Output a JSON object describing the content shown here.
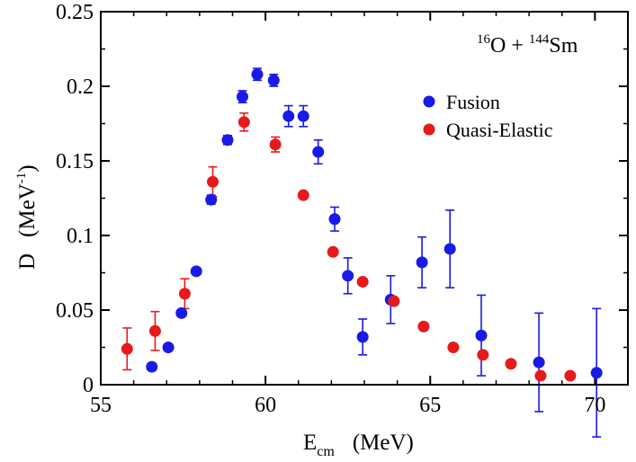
{
  "chart_data": {
    "type": "scatter",
    "title": "",
    "reaction": {
      "base": "O + ",
      "mass1": "16",
      "mass2": "144",
      "element2": "Sm"
    },
    "xlabel": {
      "main": "E",
      "sub": "cm",
      "unit": "(MeV)"
    },
    "ylabel": {
      "main": "D",
      "unit_open": "(MeV",
      "sup": "-1",
      "unit_close": ")"
    },
    "xlim": [
      55,
      71
    ],
    "ylim": [
      0,
      0.25
    ],
    "xticks": [
      {
        "v": 55,
        "label": "55"
      },
      {
        "v": 60,
        "label": "60"
      },
      {
        "v": 65,
        "label": "65"
      },
      {
        "v": 70,
        "label": "70"
      }
    ],
    "yticks": [
      {
        "v": 0,
        "label": "0"
      },
      {
        "v": 0.05,
        "label": "0.05"
      },
      {
        "v": 0.1,
        "label": "0.1"
      },
      {
        "v": 0.15,
        "label": "0.15"
      },
      {
        "v": 0.2,
        "label": "0.2"
      },
      {
        "v": 0.25,
        "label": "0.25"
      }
    ],
    "legend": {
      "position": "top-right"
    },
    "series": [
      {
        "name": "Fusion",
        "color": "#1a1ae6",
        "points": [
          {
            "x": 56.55,
            "y": 0.012,
            "err": 0.002
          },
          {
            "x": 57.05,
            "y": 0.025,
            "err": 0.002
          },
          {
            "x": 57.45,
            "y": 0.048,
            "err": 0.002
          },
          {
            "x": 57.9,
            "y": 0.076,
            "err": 0.002
          },
          {
            "x": 58.35,
            "y": 0.124,
            "err": 0.003
          },
          {
            "x": 58.85,
            "y": 0.164,
            "err": 0.003
          },
          {
            "x": 59.3,
            "y": 0.193,
            "err": 0.004
          },
          {
            "x": 59.75,
            "y": 0.208,
            "err": 0.004
          },
          {
            "x": 60.25,
            "y": 0.204,
            "err": 0.004
          },
          {
            "x": 60.7,
            "y": 0.18,
            "err": 0.007
          },
          {
            "x": 61.15,
            "y": 0.18,
            "err": 0.007
          },
          {
            "x": 61.6,
            "y": 0.156,
            "err": 0.008
          },
          {
            "x": 62.1,
            "y": 0.111,
            "err": 0.008
          },
          {
            "x": 62.5,
            "y": 0.073,
            "err": 0.012
          },
          {
            "x": 62.95,
            "y": 0.032,
            "err": 0.012
          },
          {
            "x": 63.8,
            "y": 0.057,
            "err": 0.016
          },
          {
            "x": 64.75,
            "y": 0.082,
            "err": 0.017
          },
          {
            "x": 65.6,
            "y": 0.091,
            "err": 0.026
          },
          {
            "x": 66.55,
            "y": 0.033,
            "err": 0.027
          },
          {
            "x": 68.3,
            "y": 0.015,
            "err": 0.033
          },
          {
            "x": 70.05,
            "y": 0.008,
            "err": 0.043
          }
        ]
      },
      {
        "name": "Quasi-Elastic",
        "color": "#e61a1a",
        "points": [
          {
            "x": 55.8,
            "y": 0.024,
            "err": 0.014
          },
          {
            "x": 56.65,
            "y": 0.036,
            "err": 0.013
          },
          {
            "x": 57.55,
            "y": 0.061,
            "err": 0.01
          },
          {
            "x": 58.4,
            "y": 0.136,
            "err": 0.01
          },
          {
            "x": 59.35,
            "y": 0.176,
            "err": 0.006
          },
          {
            "x": 60.3,
            "y": 0.161,
            "err": 0.005
          },
          {
            "x": 61.15,
            "y": 0.127,
            "err": 0.002
          },
          {
            "x": 62.05,
            "y": 0.089,
            "err": 0.0
          },
          {
            "x": 62.95,
            "y": 0.069,
            "err": 0.0
          },
          {
            "x": 63.9,
            "y": 0.056,
            "err": 0.0
          },
          {
            "x": 64.8,
            "y": 0.039,
            "err": 0.0
          },
          {
            "x": 65.7,
            "y": 0.025,
            "err": 0.0
          },
          {
            "x": 66.6,
            "y": 0.02,
            "err": 0.0
          },
          {
            "x": 67.45,
            "y": 0.014,
            "err": 0.0
          },
          {
            "x": 68.35,
            "y": 0.006,
            "err": 0.0
          },
          {
            "x": 69.25,
            "y": 0.006,
            "err": 0.0
          }
        ]
      }
    ]
  }
}
